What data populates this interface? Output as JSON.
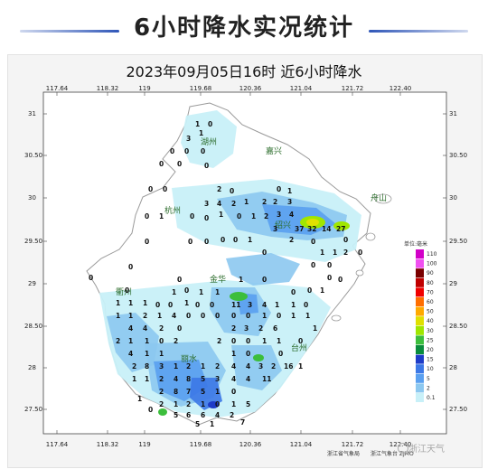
{
  "page": {
    "title": "6小时降水实况统计"
  },
  "map": {
    "subtitle": "2023年09月05日16时  近6小时降水",
    "top_ticks": [
      "117.64",
      "118.32",
      "119",
      "119.68",
      "120.36",
      "121.04",
      "121.72",
      "122.40"
    ],
    "bottom_ticks": [
      "117.64",
      "118.32",
      "119",
      "119.68",
      "120.36",
      "121.04",
      "121.72",
      "122.40"
    ],
    "left_ticks": [
      "31",
      "30.50",
      "30",
      "29.50",
      "29",
      "28.50",
      "28",
      "27.50"
    ],
    "right_ticks": [
      "31",
      "30.50",
      "30",
      "29.50",
      "29",
      "28.50",
      "28",
      "27.50"
    ],
    "cities": [
      "湖州",
      "嘉兴",
      "杭州",
      "绍兴",
      "舟山",
      "金华",
      "衢州",
      "丽水",
      "台州"
    ],
    "station_values": [
      "1",
      "0",
      "3",
      "1",
      "0",
      "0",
      "0",
      "0",
      "0",
      "0",
      "0",
      "0",
      "2",
      "0",
      "0",
      "1",
      "3",
      "4",
      "2",
      "1",
      "2",
      "2",
      "3",
      "0",
      "1",
      "0",
      "0",
      "1",
      "0",
      "1",
      "2",
      "3",
      "4",
      "3",
      "37",
      "32",
      "14",
      "27",
      "0",
      "0",
      "0",
      "0",
      "0",
      "1",
      "2",
      "0",
      "0",
      "0",
      "1",
      "1",
      "2",
      "0",
      "0",
      "0",
      "0",
      "0",
      "0",
      "1",
      "0",
      "0",
      "0",
      "0",
      "1",
      "0",
      "1",
      "1",
      "0",
      "0",
      "1",
      "1",
      "1",
      "1",
      "0",
      "0",
      "1",
      "0",
      "0",
      "11",
      "3",
      "4",
      "1",
      "1",
      "0",
      "1",
      "1",
      "2",
      "1",
      "4",
      "0",
      "0",
      "0",
      "0",
      "0",
      "1",
      "0",
      "1",
      "1",
      "4",
      "4",
      "2",
      "0",
      "2",
      "3",
      "2",
      "6",
      "2",
      "1",
      "1",
      "0",
      "2",
      "2",
      "0",
      "0",
      "1",
      "1",
      "4",
      "1",
      "1",
      "1",
      "0",
      "0",
      "2",
      "8",
      "3",
      "1",
      "2",
      "1",
      "2",
      "4",
      "4",
      "3",
      "2",
      "16",
      "1",
      "1",
      "1",
      "2",
      "4",
      "8",
      "5",
      "3",
      "4",
      "4",
      "11",
      "2",
      "8",
      "7",
      "5",
      "1",
      "0",
      "2",
      "1",
      "2",
      "1",
      "0",
      "1",
      "5",
      "5",
      "6",
      "6",
      "4",
      "1",
      "0",
      "2",
      "7",
      "5",
      "1",
      "1",
      "0",
      "0"
    ]
  },
  "legend": {
    "title": "单位:毫米",
    "levels": [
      "110",
      "100",
      "90",
      "80",
      "70",
      "60",
      "50",
      "40",
      "30",
      "25",
      "20",
      "15",
      "10",
      "5",
      "2",
      "0.1"
    ],
    "colors": [
      "#d200c8",
      "#f050f0",
      "#7a0000",
      "#c00000",
      "#f00000",
      "#ff6e00",
      "#ffaa00",
      "#e0e000",
      "#a0e600",
      "#3cbe3c",
      "#0a8c3c",
      "#1e3cc8",
      "#3c78e6",
      "#5aa0f0",
      "#8cc8f0",
      "#c8f0f8"
    ]
  },
  "credits": {
    "left": "浙江省气象局",
    "right": "浙江气象台 ZJMO",
    "watermark": "浙江天气"
  }
}
